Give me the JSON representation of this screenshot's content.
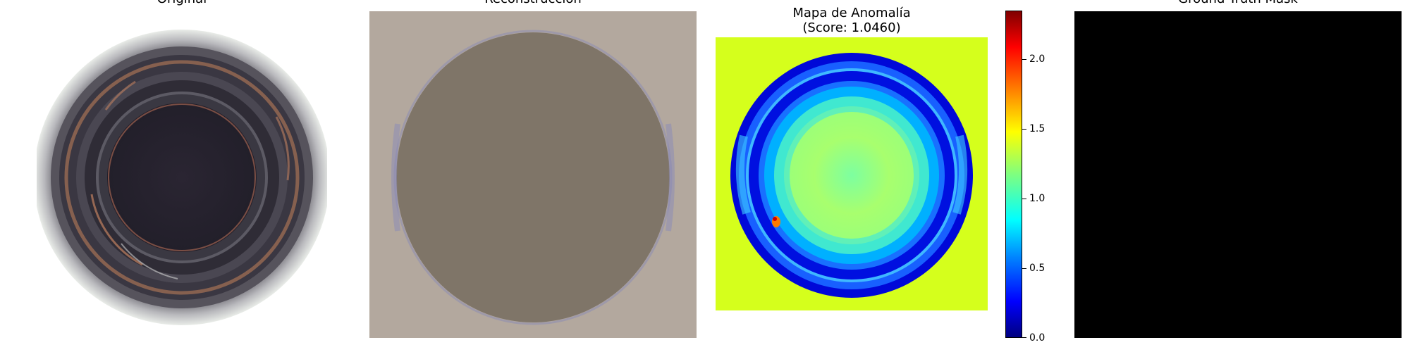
{
  "panels": {
    "original": {
      "title": "Original"
    },
    "reconstruction": {
      "title": "Reconstrucción"
    },
    "anomaly": {
      "title_line1": "Mapa de Anomalía",
      "title_line2": "(Score: 1.0460)"
    },
    "mask": {
      "title": "Ground Truth Mask"
    }
  },
  "colors": {
    "recon_background": "#b3a89e",
    "recon_disc": "#7f7568",
    "anomaly_background": "#d5ff1c",
    "mask_fill": "#000000"
  },
  "chart_data": {
    "type": "heatmap",
    "colormap": "jet",
    "score": 1.046,
    "colorbar": {
      "min": 0.0,
      "max": 2.35,
      "ticks": [
        0.0,
        0.5,
        1.0,
        1.5,
        2.0
      ],
      "tick_labels": [
        "0.0",
        "0.5",
        "1.0",
        "1.5",
        "2.0"
      ]
    }
  }
}
